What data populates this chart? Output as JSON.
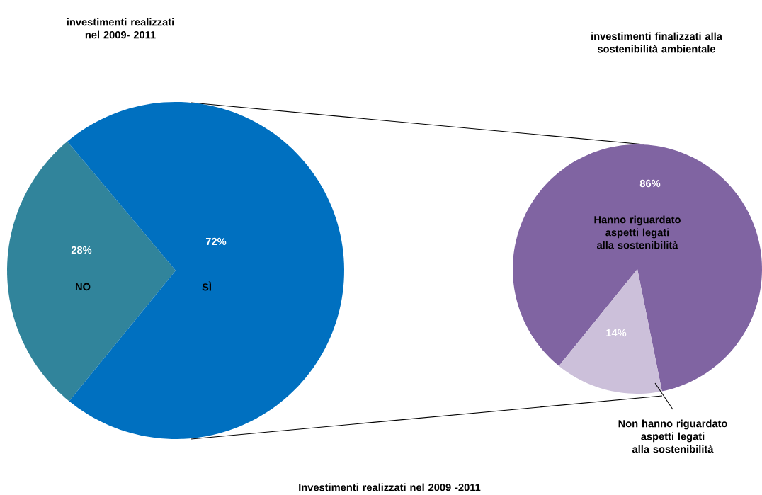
{
  "chart_data": [
    {
      "type": "pie",
      "title": "investimenti realizzati nel 2009- 2011",
      "categories": [
        "NO",
        "SÌ"
      ],
      "values": [
        28,
        72
      ],
      "colors": [
        "#31849b",
        "#0070c0"
      ],
      "value_labels": [
        "28%",
        "72%"
      ],
      "annotations": [
        "Investimenti realizzati nel 2009 -2011"
      ]
    },
    {
      "type": "pie",
      "title": "investimenti finalizzati alla sostenibilità ambientale",
      "categories": [
        "Hanno riguardato aspetti legati alla sostenibilità",
        "Non hanno riguardato aspetti legati alla sostenibilità"
      ],
      "values": [
        86,
        14
      ],
      "colors": [
        "#8064a2",
        "#ccc0da"
      ],
      "value_labels": [
        "86%",
        "14%"
      ]
    }
  ]
}
